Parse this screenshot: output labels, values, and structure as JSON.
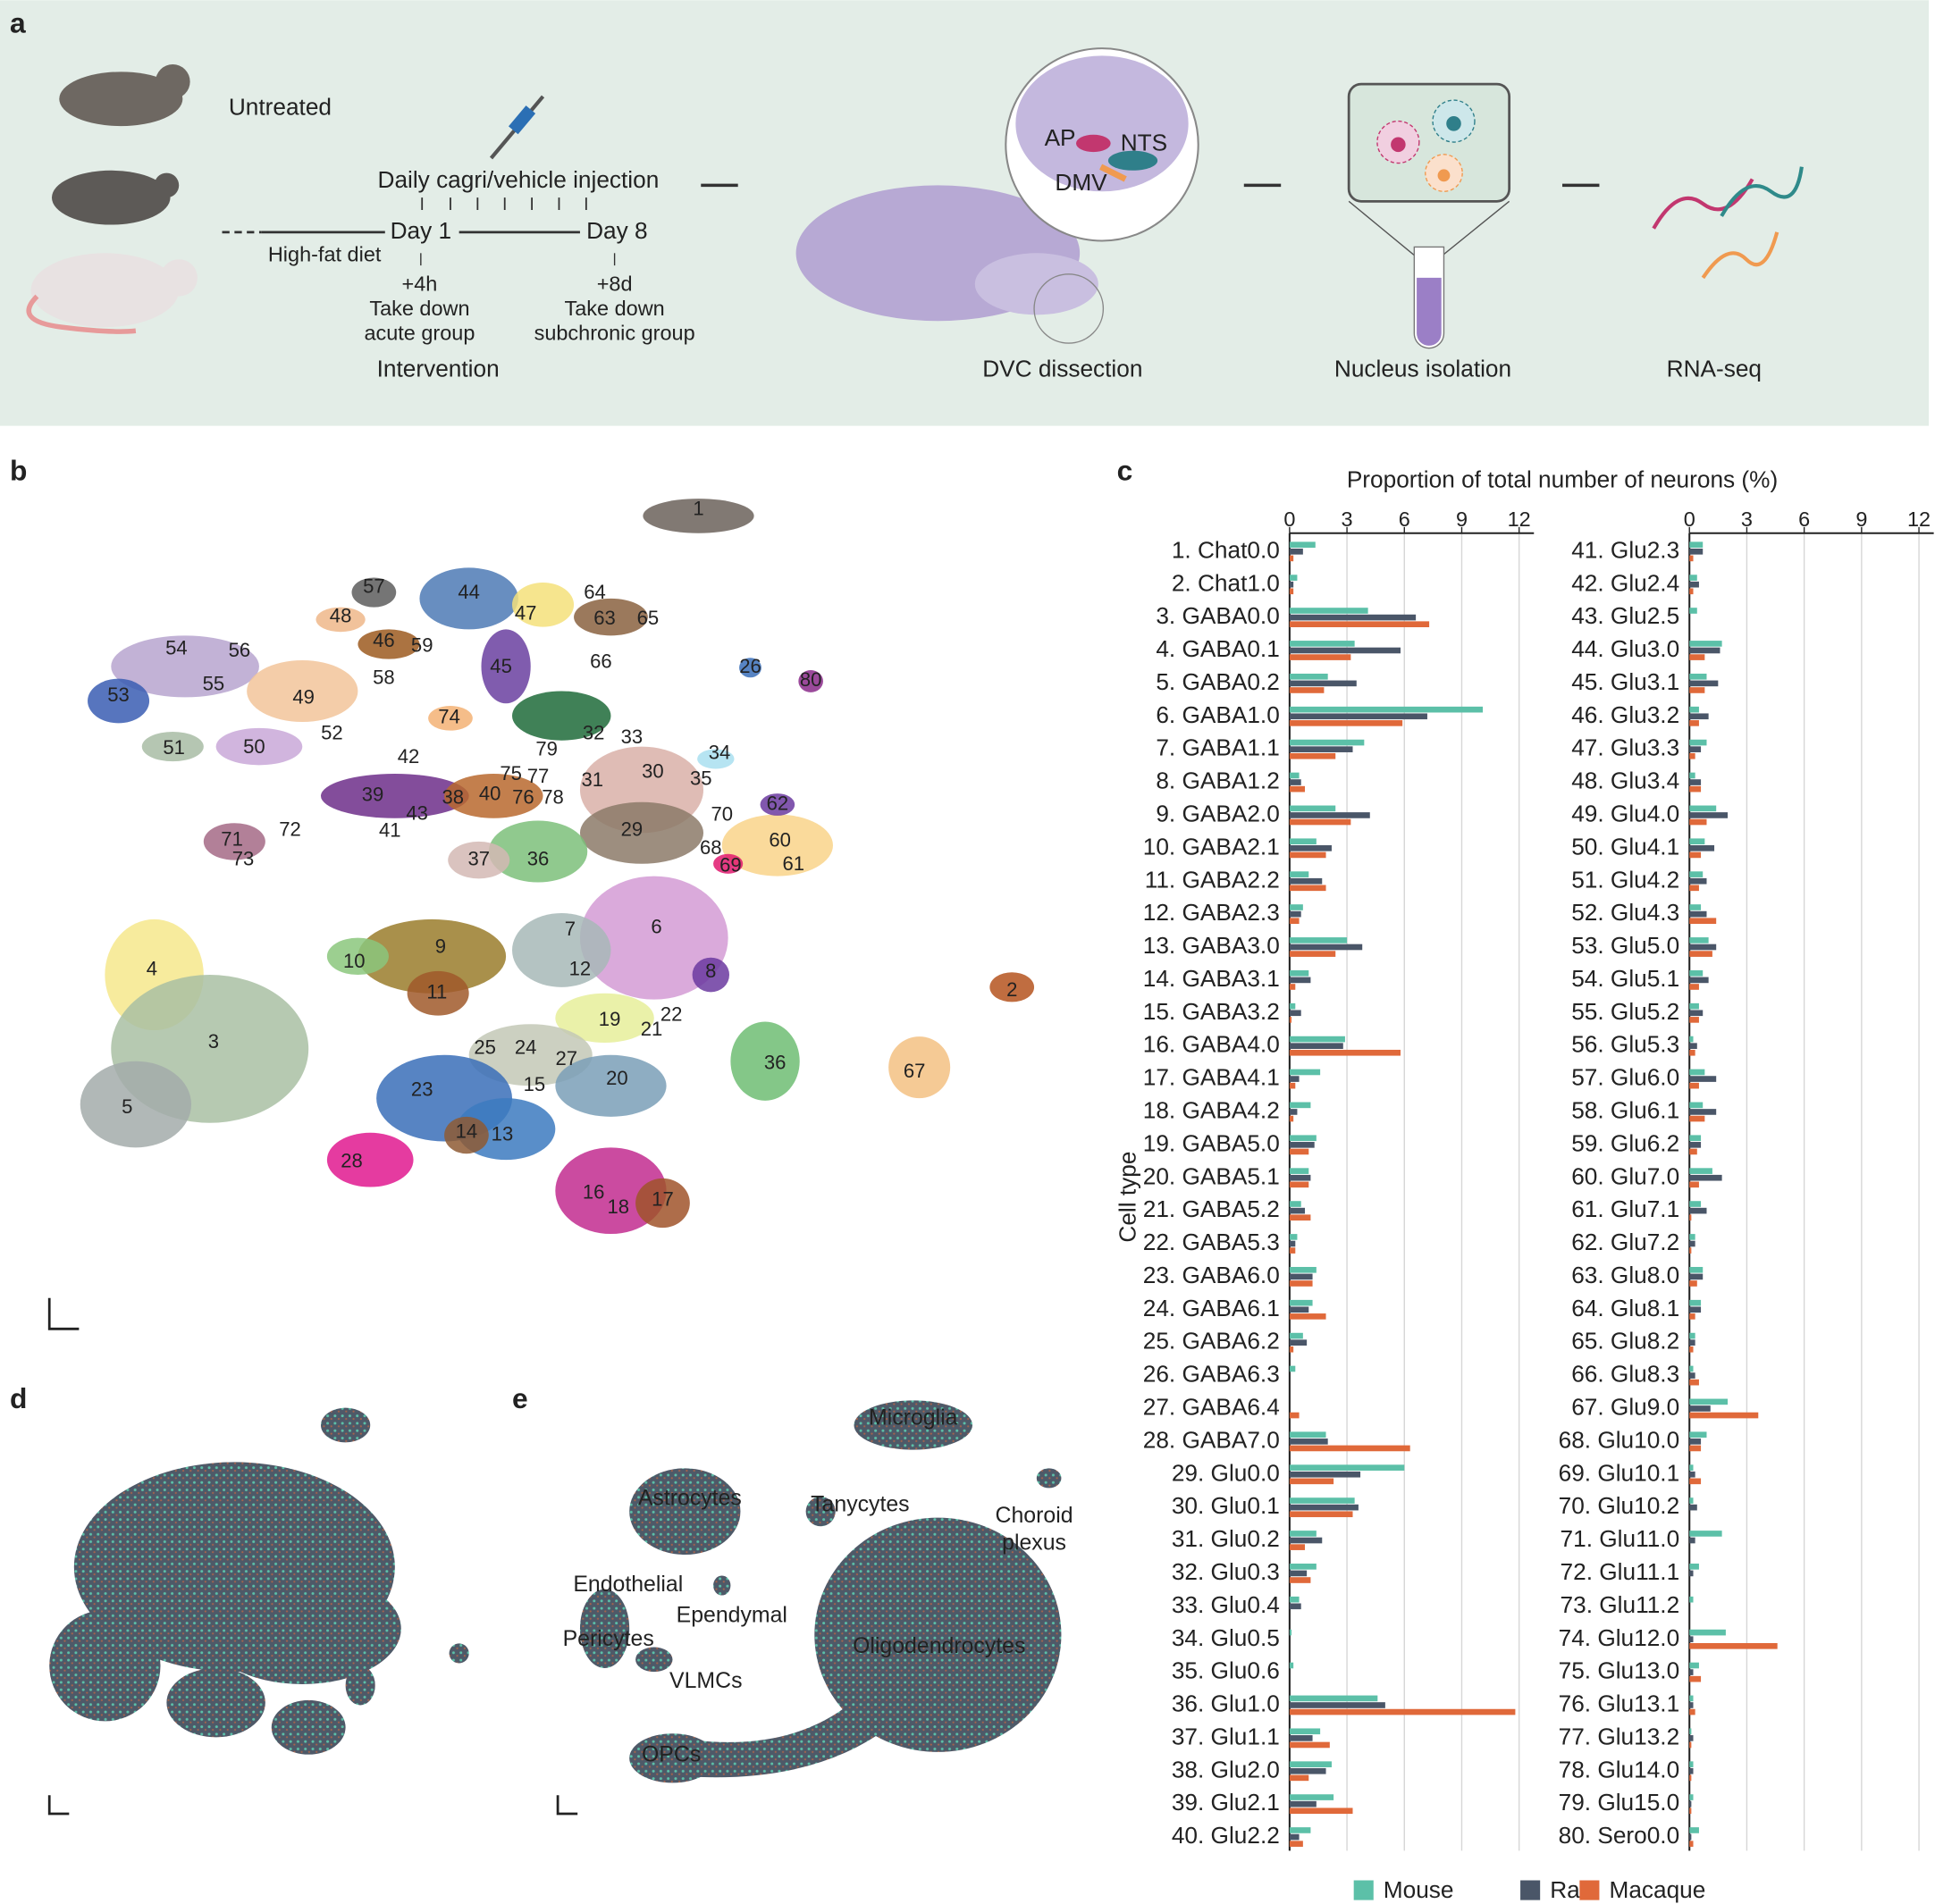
{
  "panel_labels": [
    "a",
    "b",
    "c",
    "d",
    "e"
  ],
  "panel_a": {
    "untreated": "Untreated",
    "injection": "Daily cagri/vehicle injection",
    "day1": "Day 1",
    "day8": "Day 8",
    "diet": "High-fat diet",
    "acute": [
      "+4h",
      "Take down",
      "acute group"
    ],
    "subchronic": [
      "+8d",
      "Take down",
      "subchronic group"
    ],
    "regions": [
      "AP",
      "NTS",
      "DMV"
    ],
    "steps": [
      "Intervention",
      "DVC dissection",
      "Nucleus isolation",
      "RNA-seq"
    ]
  },
  "panel_b": {
    "cluster_labels": [
      "1",
      "57",
      "44",
      "47",
      "64",
      "63",
      "65",
      "48",
      "46",
      "59",
      "54",
      "56",
      "66",
      "26",
      "80",
      "53",
      "55",
      "49",
      "58",
      "45",
      "74",
      "52",
      "51",
      "50",
      "32",
      "33",
      "34",
      "42",
      "79",
      "75",
      "77",
      "31",
      "30",
      "35",
      "39",
      "38",
      "40",
      "76",
      "78",
      "43",
      "62",
      "70",
      "29",
      "72",
      "71",
      "41",
      "37",
      "36",
      "68",
      "60",
      "69",
      "61",
      "73",
      "7",
      "6",
      "9",
      "4",
      "10",
      "12",
      "8",
      "11",
      "2",
      "3",
      "19",
      "22",
      "21",
      "25",
      "24",
      "27",
      "36",
      "67",
      "15",
      "20",
      "23",
      "5",
      "14",
      "13",
      "28",
      "16",
      "18",
      "17"
    ]
  },
  "panel_e": {
    "cell_classes": [
      "Microglia",
      "Astrocytes",
      "Tanycytes",
      "Choroid plexus",
      "Endothelial",
      "Ependymal",
      "Pericytes",
      "VLMCs",
      "Oligodendrocytes",
      "OPCs"
    ]
  },
  "chart_data": {
    "type": "bar",
    "orientation": "horizontal",
    "x_label": "Proportion of total number of neurons (%)",
    "y_label": "Cell type",
    "xlim": [
      0,
      12
    ],
    "xticks": [
      0,
      3,
      6,
      9,
      12
    ],
    "grid": true,
    "legend": "bottom",
    "categories": [
      "1. Chat0.0",
      "2. Chat1.0",
      "3. GABA0.0",
      "4. GABA0.1",
      "5. GABA0.2",
      "6. GABA1.0",
      "7. GABA1.1",
      "8. GABA1.2",
      "9. GABA2.0",
      "10. GABA2.1",
      "11. GABA2.2",
      "12. GABA2.3",
      "13. GABA3.0",
      "14. GABA3.1",
      "15. GABA3.2",
      "16. GABA4.0",
      "17. GABA4.1",
      "18. GABA4.2",
      "19. GABA5.0",
      "20. GABA5.1",
      "21. GABA5.2",
      "22. GABA5.3",
      "23. GABA6.0",
      "24. GABA6.1",
      "25. GABA6.2",
      "26. GABA6.3",
      "27. GABA6.4",
      "28. GABA7.0",
      "29. Glu0.0",
      "30. Glu0.1",
      "31. Glu0.2",
      "32. Glu0.3",
      "33. Glu0.4",
      "34. Glu0.5",
      "35. Glu0.6",
      "36. Glu1.0",
      "37. Glu1.1",
      "38. Glu2.0",
      "39. Glu2.1",
      "40. Glu2.2",
      "41. Glu2.3",
      "42. Glu2.4",
      "43. Glu2.5",
      "44. Glu3.0",
      "45. Glu3.1",
      "46. Glu3.2",
      "47. Glu3.3",
      "48. Glu3.4",
      "49. Glu4.0",
      "50. Glu4.1",
      "51. Glu4.2",
      "52. Glu4.3",
      "53. Glu5.0",
      "54. Glu5.1",
      "55. Glu5.2",
      "56. Glu5.3",
      "57. Glu6.0",
      "58. Glu6.1",
      "59. Glu6.2",
      "60. Glu7.0",
      "61. Glu7.1",
      "62. Glu7.2",
      "63. Glu8.0",
      "64. Glu8.1",
      "65. Glu8.2",
      "66. Glu8.3",
      "67. Glu9.0",
      "68. Glu10.0",
      "69. Glu10.1",
      "70. Glu10.2",
      "71. Glu11.0",
      "72. Glu11.1",
      "73. Glu11.2",
      "74. Glu12.0",
      "75. Glu13.0",
      "76. Glu13.1",
      "77. Glu13.2",
      "78. Glu14.0",
      "79. Glu15.0",
      "80. Sero0.0"
    ],
    "series": [
      {
        "name": "Mouse",
        "color": "#5cc0a8",
        "values": [
          1.35,
          0.4,
          4.1,
          3.4,
          2.0,
          10.1,
          3.9,
          0.5,
          2.4,
          1.4,
          1.0,
          0.7,
          3.0,
          1.0,
          0.3,
          2.9,
          1.6,
          1.1,
          1.4,
          1.0,
          0.6,
          0.4,
          1.4,
          1.2,
          0.7,
          0.3,
          0,
          1.9,
          6.0,
          3.4,
          1.4,
          1.4,
          0.5,
          0.1,
          0.2,
          4.6,
          1.6,
          2.2,
          2.3,
          1.1,
          0.7,
          0.4,
          0.4,
          1.7,
          0.9,
          0.5,
          0.9,
          0.3,
          1.4,
          0.8,
          0.7,
          0.6,
          1.0,
          0.7,
          0.5,
          0.2,
          0.8,
          0.7,
          0.6,
          1.2,
          0.6,
          0.3,
          0.7,
          0.6,
          0.3,
          0.2,
          2.0,
          0.9,
          0.2,
          0.2,
          1.7,
          0.5,
          0.2,
          1.9,
          0.5,
          0.2,
          0.1,
          0.2,
          0.2,
          0.5
        ]
      },
      {
        "name": "Rat",
        "color": "#4a5668",
        "values": [
          0.7,
          0.2,
          6.6,
          5.8,
          3.5,
          7.2,
          3.3,
          0.6,
          4.2,
          2.2,
          1.7,
          0.6,
          3.8,
          1.1,
          0.6,
          2.8,
          0.5,
          0.4,
          1.3,
          1.1,
          0.8,
          0.3,
          1.2,
          1.0,
          0.9,
          0,
          0,
          2.0,
          3.7,
          3.6,
          1.7,
          0.9,
          0.6,
          0,
          0,
          5.0,
          1.2,
          1.9,
          1.4,
          0.5,
          0.7,
          0.5,
          0,
          1.6,
          1.5,
          1.0,
          0.6,
          0.6,
          2.0,
          1.3,
          0.9,
          0.9,
          1.4,
          1.0,
          0.7,
          0.4,
          1.4,
          1.4,
          0.6,
          1.7,
          0.9,
          0.3,
          0.7,
          0.6,
          0.3,
          0.3,
          1.1,
          0.6,
          0.3,
          0.4,
          0.3,
          0.2,
          0,
          0.2,
          0.2,
          0.2,
          0.2,
          0.2,
          0.1,
          0.1
        ]
      },
      {
        "name": "Macaque",
        "color": "#e0693a",
        "values": [
          0.2,
          0.2,
          7.3,
          3.2,
          1.8,
          5.9,
          2.4,
          0.8,
          3.2,
          1.9,
          1.9,
          0.5,
          2.4,
          0.3,
          0.1,
          5.8,
          0.3,
          0.2,
          1.0,
          1.0,
          1.1,
          0.3,
          1.2,
          1.9,
          0.2,
          0,
          0.5,
          6.3,
          2.3,
          3.3,
          0.8,
          1.1,
          0,
          0,
          0,
          11.8,
          2.1,
          1.0,
          3.3,
          0.7,
          0.2,
          0.2,
          0,
          0.8,
          0.8,
          0.5,
          0.3,
          0.6,
          0.9,
          0.6,
          0.5,
          1.4,
          1.2,
          0.5,
          0.5,
          0.3,
          0.5,
          0.8,
          0.4,
          0.5,
          0.1,
          0.1,
          0.4,
          0.3,
          0.2,
          0.5,
          3.6,
          0.6,
          0.6,
          0,
          0,
          0,
          0,
          4.6,
          0.6,
          0.3,
          0.1,
          0.1,
          0.1,
          0.2
        ]
      }
    ]
  }
}
